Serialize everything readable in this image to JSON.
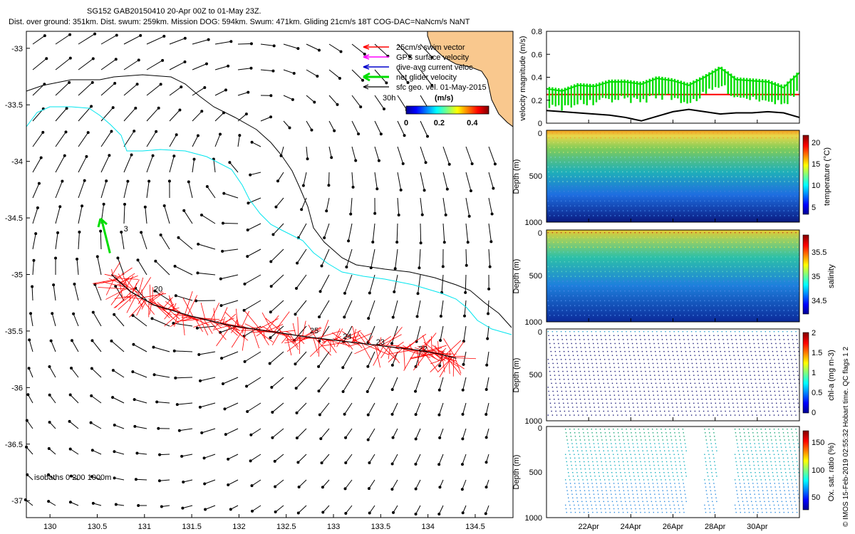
{
  "header": {
    "line1": "SG152 GAB20150410 20-Apr 00Z to 01-May 23Z.",
    "line2": "Dist. over ground: 351km. Dist. swum: 259km. Mission DOG: 594km. Swum: 471km. Gliding 21cm/s 18T COG-DAC=NaNcm/s NaNT"
  },
  "credit": "© IMOS 15-Feb-2019 02:55:32 Hobart time. QC flags 1  2",
  "colors": {
    "land": "#f9c88e",
    "isobath200": "#00e5ee",
    "isobath1000": "#000000",
    "track": "#ff0000",
    "net_velocity": "#00dd00",
    "gps_surface": "#ff00ff",
    "dive_avg": "#0000cc"
  },
  "chart_data": [
    {
      "type": "quiver-map",
      "xlim": [
        129.75,
        134.9
      ],
      "ylim": [
        -37.15,
        -32.85
      ],
      "x_ticks": [
        "130",
        "130.5",
        "131",
        "131.5",
        "132",
        "132.5",
        "133",
        "133.5",
        "134",
        "134.5"
      ],
      "y_ticks": [
        "-33",
        "-33.5",
        "-34",
        "-34.5",
        "-35",
        "-35.5",
        "-36",
        "-36.5",
        "-37"
      ],
      "legend": [
        {
          "label": "25cm/s swim vector",
          "color": "#ff0000"
        },
        {
          "label": "GPS surface velocity",
          "color": "#ff00ff"
        },
        {
          "label": "dive-avg current veloc",
          "color": "#0000cc"
        },
        {
          "label": "net glider velocity",
          "color": "#00dd00"
        },
        {
          "label": "sfc geo. vel. 01-May-2015",
          "color": "#000000"
        }
      ],
      "legend_extra": "30h",
      "colorbar": {
        "title": "(m/s)",
        "ticks": [
          "0",
          "0.2",
          "0.4"
        ],
        "range": [
          0,
          0.5
        ]
      },
      "isobath_note": "isobaths 0   200  1000m",
      "track": [
        [
          130.65,
          -35.0
        ],
        [
          130.85,
          -35.15
        ],
        [
          131.1,
          -35.27
        ],
        [
          131.5,
          -35.37
        ],
        [
          131.9,
          -35.45
        ],
        [
          132.3,
          -35.5
        ],
        [
          132.7,
          -35.55
        ],
        [
          133.1,
          -35.59
        ],
        [
          133.5,
          -35.63
        ],
        [
          133.9,
          -35.67
        ],
        [
          134.1,
          -35.7
        ],
        [
          134.3,
          -35.74
        ]
      ],
      "track_labels": [
        {
          "text": "3",
          "lon": 130.78,
          "lat": -34.62
        },
        {
          "text": "20",
          "lon": 131.1,
          "lat": -35.15
        },
        {
          "text": "25",
          "lon": 132.75,
          "lat": -35.52
        },
        {
          "text": "24",
          "lon": 133.1,
          "lat": -35.57
        },
        {
          "text": "23",
          "lon": 133.45,
          "lat": -35.62
        },
        {
          "text": "22",
          "lon": 133.9,
          "lat": -35.68
        }
      ]
    },
    {
      "type": "line",
      "ylabel": "velocity magnitude (m/s)",
      "ylim": [
        0,
        0.8
      ],
      "y_ticks": [
        "0",
        "0.2",
        "0.4",
        "0.6",
        "0.8"
      ],
      "series": [
        {
          "values": [
            0.11,
            0.1,
            0.09,
            0.08,
            0.07,
            0.05,
            0.02,
            0.06,
            0.1,
            0.12,
            0.1,
            0.08,
            0.09,
            0.09,
            0.1,
            0.09,
            0.05
          ],
          "color": "#000000"
        },
        {
          "values": [
            0.25,
            0.25
          ],
          "color": "#ff0000"
        },
        {
          "values": [
            0.3,
            0.28,
            0.33,
            0.32,
            0.36,
            0.36,
            0.34,
            0.39,
            0.37,
            0.33,
            0.4,
            0.48,
            0.38,
            0.37,
            0.36,
            0.31,
            0.44
          ],
          "color": "#00dd00"
        }
      ]
    },
    {
      "type": "scatter",
      "ylabel": "Depth (m)",
      "cbar_label": "temperature (°C)",
      "cbar_ticks": [
        "5",
        "10",
        "15",
        "20"
      ],
      "cbar_range": [
        3,
        22
      ],
      "ylim": [
        1000,
        0
      ],
      "y_ticks": [
        "0",
        "500",
        "1000"
      ]
    },
    {
      "type": "scatter",
      "ylabel": "Depth (m)",
      "cbar_label": "salinity",
      "cbar_ticks": [
        "34.5",
        "35",
        "35.5"
      ],
      "cbar_range": [
        34.3,
        35.9
      ],
      "ylim": [
        1000,
        0
      ],
      "y_ticks": [
        "0",
        "500",
        "1000"
      ]
    },
    {
      "type": "scatter",
      "ylabel": "Depth (m)",
      "cbar_label": "chl-a (mg m-3)",
      "cbar_ticks": [
        "0",
        "0.5",
        "1",
        "1.5",
        "2"
      ],
      "cbar_range": [
        0,
        2
      ],
      "ylim": [
        1000,
        0
      ],
      "y_ticks": [
        "0",
        "500",
        "1000"
      ]
    },
    {
      "type": "scatter",
      "ylabel": "Depth (m)",
      "cbar_label": "Ox. sat. ratio (%)",
      "cbar_ticks": [
        "50",
        "100",
        "150"
      ],
      "cbar_range": [
        25,
        175
      ],
      "ylim": [
        1000,
        0
      ],
      "y_ticks": [
        "0",
        "500",
        "1000"
      ],
      "x_ticks": [
        "22Apr",
        "24Apr",
        "26Apr",
        "28Apr",
        "30Apr"
      ],
      "xlim": [
        "20-Apr",
        "02-May"
      ]
    }
  ]
}
